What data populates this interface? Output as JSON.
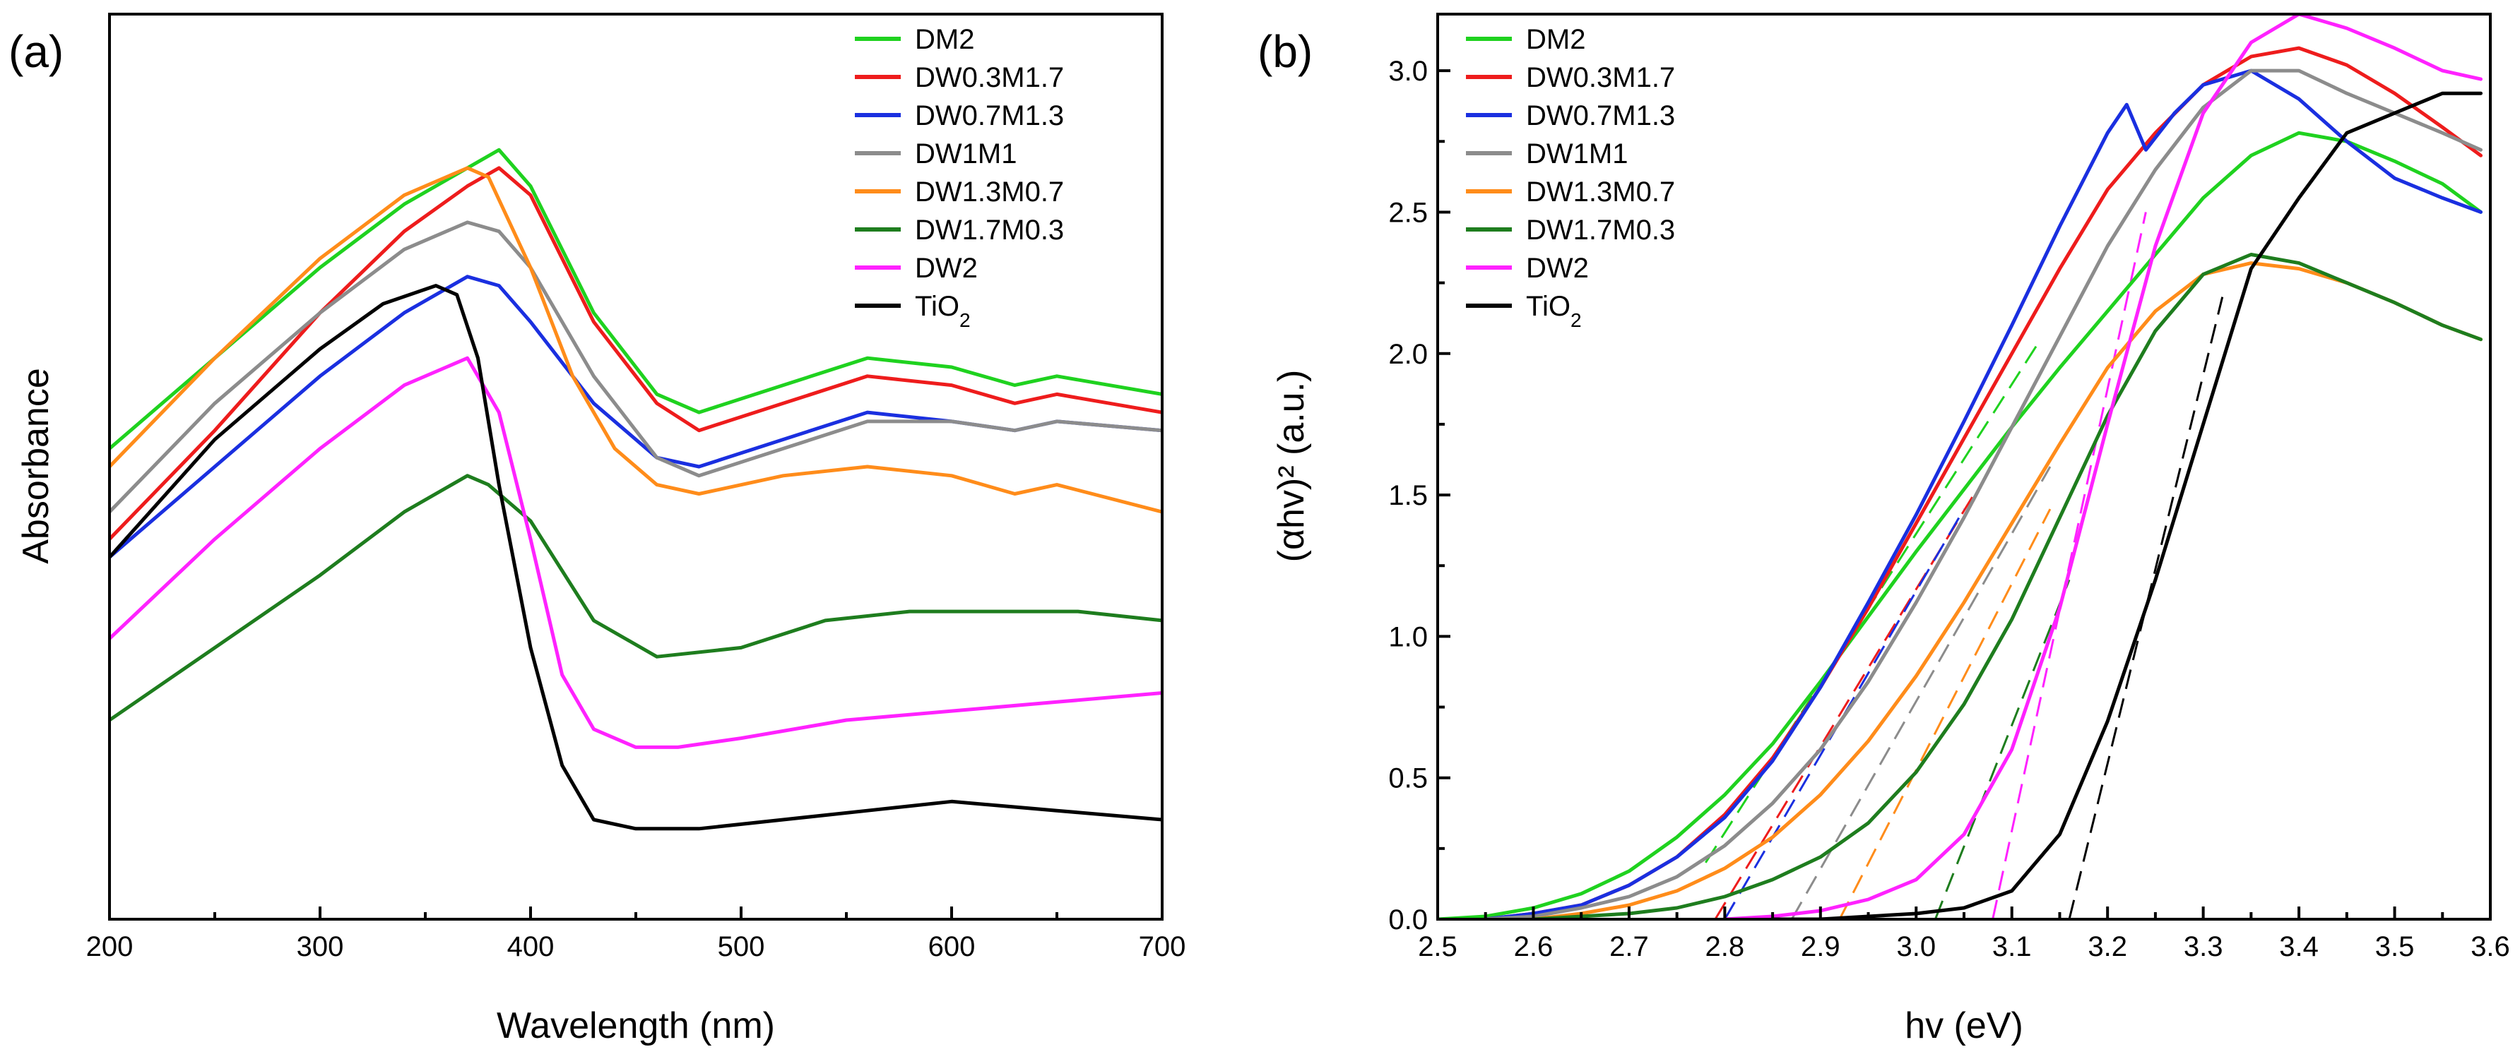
{
  "colors": {
    "DM2": "#1fd21f",
    "DW0.3M1.7": "#ee1c1c",
    "DW0.7M1.3": "#1a2fe0",
    "DW1M1": "#8c8c8c",
    "DW1.3M0.7": "#ff8c1a",
    "DW1.7M0.3": "#1e7d1e",
    "DW2": "#ff22ff",
    "TiO2": "#000000"
  },
  "chart_data": [
    {
      "type": "line",
      "panel_label": "(a)",
      "xlabel": "Wavelength (nm)",
      "ylabel": "Absorbance",
      "xlim": [
        200,
        700
      ],
      "ylim": [
        0,
        1
      ],
      "xticks": [
        200,
        300,
        400,
        500,
        600,
        700
      ],
      "yticks_shown": false,
      "legend_position": "top-right",
      "series": [
        {
          "name": "DM2",
          "x": [
            200,
            250,
            300,
            340,
            370,
            385,
            400,
            430,
            460,
            480,
            520,
            560,
            600,
            630,
            650,
            700
          ],
          "y": [
            0.52,
            0.62,
            0.72,
            0.79,
            0.83,
            0.85,
            0.81,
            0.67,
            0.58,
            0.56,
            0.59,
            0.62,
            0.61,
            0.59,
            0.6,
            0.58
          ]
        },
        {
          "name": "DW0.3M1.7",
          "x": [
            200,
            250,
            300,
            340,
            370,
            385,
            400,
            430,
            460,
            480,
            520,
            560,
            600,
            630,
            650,
            700
          ],
          "y": [
            0.42,
            0.54,
            0.67,
            0.76,
            0.81,
            0.83,
            0.8,
            0.66,
            0.57,
            0.54,
            0.57,
            0.6,
            0.59,
            0.57,
            0.58,
            0.56
          ]
        },
        {
          "name": "DW0.7M1.3",
          "x": [
            200,
            250,
            300,
            340,
            370,
            385,
            400,
            430,
            460,
            480,
            520,
            560,
            600,
            630,
            650,
            700
          ],
          "y": [
            0.4,
            0.5,
            0.6,
            0.67,
            0.71,
            0.7,
            0.66,
            0.57,
            0.51,
            0.5,
            0.53,
            0.56,
            0.55,
            0.54,
            0.55,
            0.54
          ]
        },
        {
          "name": "DW1M1",
          "x": [
            200,
            250,
            300,
            340,
            370,
            385,
            400,
            430,
            460,
            480,
            520,
            560,
            600,
            630,
            650,
            700
          ],
          "y": [
            0.45,
            0.57,
            0.67,
            0.74,
            0.77,
            0.76,
            0.72,
            0.6,
            0.51,
            0.49,
            0.52,
            0.55,
            0.55,
            0.54,
            0.55,
            0.54
          ]
        },
        {
          "name": "DW1.3M0.7",
          "x": [
            200,
            250,
            300,
            340,
            370,
            380,
            400,
            420,
            440,
            460,
            480,
            520,
            560,
            600,
            630,
            650,
            700
          ],
          "y": [
            0.5,
            0.62,
            0.73,
            0.8,
            0.83,
            0.82,
            0.72,
            0.6,
            0.52,
            0.48,
            0.47,
            0.49,
            0.5,
            0.49,
            0.47,
            0.48,
            0.45
          ]
        },
        {
          "name": "DW1.7M0.3",
          "x": [
            200,
            250,
            300,
            340,
            370,
            380,
            400,
            430,
            460,
            500,
            540,
            580,
            620,
            660,
            700
          ],
          "y": [
            0.22,
            0.3,
            0.38,
            0.45,
            0.49,
            0.48,
            0.44,
            0.33,
            0.29,
            0.3,
            0.33,
            0.34,
            0.34,
            0.34,
            0.33
          ]
        },
        {
          "name": "DW2",
          "x": [
            200,
            250,
            300,
            340,
            370,
            385,
            400,
            415,
            430,
            450,
            470,
            500,
            550,
            600,
            650,
            700
          ],
          "y": [
            0.31,
            0.42,
            0.52,
            0.59,
            0.62,
            0.56,
            0.42,
            0.27,
            0.21,
            0.19,
            0.19,
            0.2,
            0.22,
            0.23,
            0.24,
            0.25
          ]
        },
        {
          "name": "TiO2",
          "x": [
            200,
            250,
            300,
            330,
            355,
            365,
            375,
            385,
            400,
            415,
            430,
            450,
            480,
            520,
            560,
            600,
            650,
            700
          ],
          "y": [
            0.4,
            0.53,
            0.63,
            0.68,
            0.7,
            0.69,
            0.62,
            0.48,
            0.3,
            0.17,
            0.11,
            0.1,
            0.1,
            0.11,
            0.12,
            0.13,
            0.12,
            0.11
          ]
        }
      ]
    },
    {
      "type": "line",
      "panel_label": "(b)",
      "xlabel": "hv (eV)",
      "ylabel": "(αhv)² (a.u.)",
      "xlim": [
        2.5,
        3.6
      ],
      "ylim": [
        0.0,
        3.2
      ],
      "xticks": [
        2.5,
        2.6,
        2.7,
        2.8,
        2.9,
        3.0,
        3.1,
        3.2,
        3.3,
        3.4,
        3.5,
        3.6
      ],
      "yticks": [
        0.0,
        0.5,
        1.0,
        1.5,
        2.0,
        2.5,
        3.0
      ],
      "legend_position": "top-left",
      "series": [
        {
          "name": "DM2",
          "x": [
            2.5,
            2.55,
            2.6,
            2.65,
            2.7,
            2.75,
            2.8,
            2.85,
            2.9,
            2.95,
            3.0,
            3.05,
            3.1,
            3.15,
            3.2,
            3.25,
            3.3,
            3.35,
            3.4,
            3.45,
            3.5,
            3.55,
            3.59
          ],
          "y": [
            0.0,
            0.01,
            0.04,
            0.09,
            0.17,
            0.29,
            0.44,
            0.62,
            0.84,
            1.07,
            1.3,
            1.52,
            1.74,
            1.95,
            2.15,
            2.35,
            2.55,
            2.7,
            2.78,
            2.75,
            2.68,
            2.6,
            2.5
          ]
        },
        {
          "name": "DW0.3M1.7",
          "x": [
            2.55,
            2.6,
            2.65,
            2.7,
            2.75,
            2.8,
            2.85,
            2.9,
            2.95,
            3.0,
            3.05,
            3.1,
            3.15,
            3.2,
            3.25,
            3.3,
            3.35,
            3.4,
            3.45,
            3.5,
            3.55,
            3.59
          ],
          "y": [
            0.0,
            0.02,
            0.05,
            0.12,
            0.22,
            0.37,
            0.57,
            0.82,
            1.1,
            1.4,
            1.7,
            2.0,
            2.3,
            2.58,
            2.78,
            2.95,
            3.05,
            3.08,
            3.02,
            2.92,
            2.8,
            2.7
          ]
        },
        {
          "name": "DW0.7M1.3",
          "x": [
            2.55,
            2.6,
            2.65,
            2.7,
            2.75,
            2.8,
            2.85,
            2.9,
            2.95,
            3.0,
            3.05,
            3.1,
            3.15,
            3.2,
            3.22,
            3.24,
            3.27,
            3.3,
            3.35,
            3.4,
            3.45,
            3.5,
            3.55,
            3.59
          ],
          "y": [
            0.0,
            0.02,
            0.05,
            0.12,
            0.22,
            0.36,
            0.56,
            0.82,
            1.12,
            1.43,
            1.76,
            2.1,
            2.45,
            2.78,
            2.88,
            2.72,
            2.85,
            2.95,
            3.0,
            2.9,
            2.75,
            2.62,
            2.55,
            2.5
          ]
        },
        {
          "name": "DW1M1",
          "x": [
            2.55,
            2.6,
            2.65,
            2.7,
            2.75,
            2.8,
            2.85,
            2.9,
            2.95,
            3.0,
            3.05,
            3.1,
            3.15,
            3.2,
            3.25,
            3.3,
            3.35,
            3.4,
            3.45,
            3.5,
            3.55,
            3.59
          ],
          "y": [
            0.0,
            0.01,
            0.04,
            0.08,
            0.15,
            0.26,
            0.41,
            0.6,
            0.84,
            1.12,
            1.42,
            1.74,
            2.06,
            2.38,
            2.65,
            2.87,
            3.0,
            3.0,
            2.92,
            2.85,
            2.78,
            2.72
          ]
        },
        {
          "name": "DW1.3M0.7",
          "x": [
            2.6,
            2.65,
            2.7,
            2.75,
            2.8,
            2.85,
            2.9,
            2.95,
            3.0,
            3.05,
            3.1,
            3.15,
            3.2,
            3.25,
            3.3,
            3.35,
            3.4,
            3.45,
            3.5,
            3.55,
            3.59
          ],
          "y": [
            0.0,
            0.02,
            0.05,
            0.1,
            0.18,
            0.29,
            0.44,
            0.63,
            0.86,
            1.12,
            1.4,
            1.68,
            1.95,
            2.15,
            2.28,
            2.32,
            2.3,
            2.25,
            2.18,
            2.1,
            2.05
          ]
        },
        {
          "name": "DW1.7M0.3",
          "x": [
            2.6,
            2.65,
            2.7,
            2.75,
            2.8,
            2.85,
            2.9,
            2.95,
            3.0,
            3.05,
            3.1,
            3.15,
            3.2,
            3.25,
            3.3,
            3.35,
            3.4,
            3.45,
            3.5,
            3.55,
            3.59
          ],
          "y": [
            0.0,
            0.01,
            0.02,
            0.04,
            0.08,
            0.14,
            0.22,
            0.34,
            0.52,
            0.76,
            1.06,
            1.42,
            1.78,
            2.08,
            2.28,
            2.35,
            2.32,
            2.25,
            2.18,
            2.1,
            2.05
          ]
        },
        {
          "name": "DW2",
          "x": [
            2.8,
            2.85,
            2.9,
            2.95,
            3.0,
            3.05,
            3.1,
            3.15,
            3.2,
            3.25,
            3.3,
            3.35,
            3.4,
            3.45,
            3.5,
            3.55,
            3.59
          ],
          "y": [
            0.0,
            0.01,
            0.03,
            0.07,
            0.14,
            0.3,
            0.6,
            1.1,
            1.75,
            2.38,
            2.85,
            3.1,
            3.2,
            3.15,
            3.08,
            3.0,
            2.97
          ]
        },
        {
          "name": "TiO2",
          "x": [
            2.85,
            2.9,
            2.95,
            3.0,
            3.05,
            3.1,
            3.15,
            3.2,
            3.25,
            3.3,
            3.35,
            3.4,
            3.45,
            3.5,
            3.55,
            3.59
          ],
          "y": [
            0.0,
            0.0,
            0.01,
            0.02,
            0.04,
            0.1,
            0.3,
            0.7,
            1.2,
            1.75,
            2.3,
            2.55,
            2.78,
            2.85,
            2.92,
            2.92
          ]
        }
      ],
      "fits": [
        {
          "name": "DM2",
          "x": [
            2.78,
            3.13
          ],
          "y": [
            0.2,
            2.05
          ]
        },
        {
          "name": "DW0.3M1.7",
          "x": [
            2.79,
            3.06
          ],
          "y": [
            0.0,
            1.5
          ]
        },
        {
          "name": "DW0.7M1.3",
          "x": [
            2.8,
            3.05
          ],
          "y": [
            0.0,
            1.45
          ]
        },
        {
          "name": "DW1M1",
          "x": [
            2.87,
            3.14
          ],
          "y": [
            0.0,
            1.6
          ]
        },
        {
          "name": "DW1.3M0.7",
          "x": [
            2.92,
            3.14
          ],
          "y": [
            0.0,
            1.45
          ]
        },
        {
          "name": "DW1.7M0.3",
          "x": [
            3.02,
            3.16
          ],
          "y": [
            0.0,
            1.2
          ]
        },
        {
          "name": "DW2",
          "x": [
            3.08,
            3.24
          ],
          "y": [
            0.0,
            2.5
          ]
        },
        {
          "name": "TiO2",
          "x": [
            3.16,
            3.32
          ],
          "y": [
            0.0,
            2.2
          ]
        }
      ]
    }
  ]
}
